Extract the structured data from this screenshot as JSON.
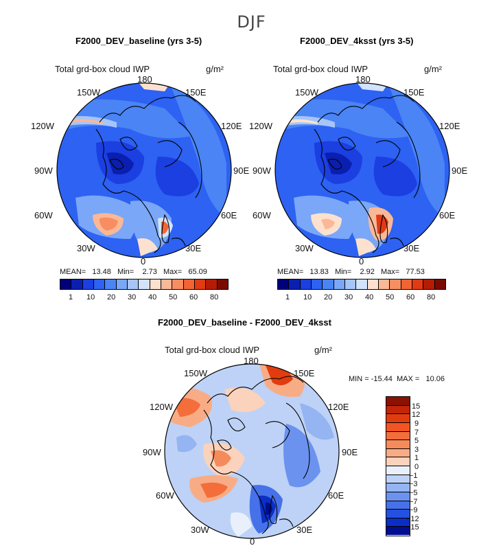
{
  "season": "DJF",
  "colors": {
    "abs_scale": [
      "#00007a",
      "#0a1fb0",
      "#1b3fe0",
      "#2d62f2",
      "#4a84f5",
      "#7aa7f7",
      "#a6c5f8",
      "#d2e3fb",
      "#fde1cf",
      "#fbb896",
      "#f78e62",
      "#f36434",
      "#e23a14",
      "#b51c05",
      "#7a0a00"
    ],
    "diff_scale": [
      "#8b1100",
      "#c22508",
      "#e13c10",
      "#f25523",
      "#f36e3b",
      "#f58b5b",
      "#f8ac85",
      "#fbd2bb",
      "#e9f0fb",
      "#bdd2f6",
      "#94b4f2",
      "#6c92ef",
      "#4771e9",
      "#2451e0",
      "#0b2fc4",
      "#000d8f"
    ]
  },
  "panels": {
    "baseline": {
      "title": "F2000_DEV_baseline (yrs 3-5)",
      "var_label": "Total grd-box cloud IWP",
      "units": "g/m²",
      "stats": "MEAN=   13.48   Min=    2.73   Max=   65.09"
    },
    "ksst": {
      "title": "F2000_DEV_4ksst (yrs 3-5)",
      "var_label": "Total grd-box cloud IWP",
      "units": "g/m²",
      "stats": "MEAN=   13.83   Min=    2.92   Max=   77.53"
    },
    "diff": {
      "title": "F2000_DEV_baseline - F2000_DEV_4ksst",
      "var_label": "Total grd-box cloud IWP",
      "units": "g/m²",
      "stats": "MIN = -15.44  MAX =   10.06"
    }
  },
  "lon_labels": {
    "l180": "180",
    "l150w": "150W",
    "l150e": "150E",
    "l120w": "120W",
    "l120e": "120E",
    "l90w": "90W",
    "l90e": "90E",
    "l60w": "60W",
    "l60e": "60E",
    "l30w": "30W",
    "l30e": "30E",
    "l0": "0"
  },
  "chart_data": [
    {
      "type": "heatmap",
      "title": "F2000_DEV_baseline (yrs 3-5)",
      "variable": "Total grd-box cloud IWP",
      "units": "g/m2",
      "season": "DJF",
      "projection": "north polar stereographic",
      "stats": {
        "mean": 13.48,
        "min": 2.73,
        "max": 65.09
      },
      "colorbar_ticks": [
        1,
        10,
        20,
        30,
        40,
        50,
        60,
        80
      ]
    },
    {
      "type": "heatmap",
      "title": "F2000_DEV_4ksst (yrs 3-5)",
      "variable": "Total grd-box cloud IWP",
      "units": "g/m2",
      "season": "DJF",
      "projection": "north polar stereographic",
      "stats": {
        "mean": 13.83,
        "min": 2.92,
        "max": 77.53
      },
      "colorbar_ticks": [
        1,
        10,
        20,
        30,
        40,
        50,
        60,
        80
      ]
    },
    {
      "type": "heatmap",
      "title": "F2000_DEV_baseline - F2000_DEV_4ksst",
      "variable": "Total grd-box cloud IWP",
      "units": "g/m2",
      "season": "DJF",
      "projection": "north polar stereographic",
      "stats": {
        "min": -15.44,
        "max": 10.06
      },
      "colorbar_ticks": [
        15,
        12,
        9,
        7,
        5,
        3,
        1,
        0,
        -1,
        -3,
        -5,
        -7,
        -9,
        -12,
        -15
      ]
    }
  ]
}
